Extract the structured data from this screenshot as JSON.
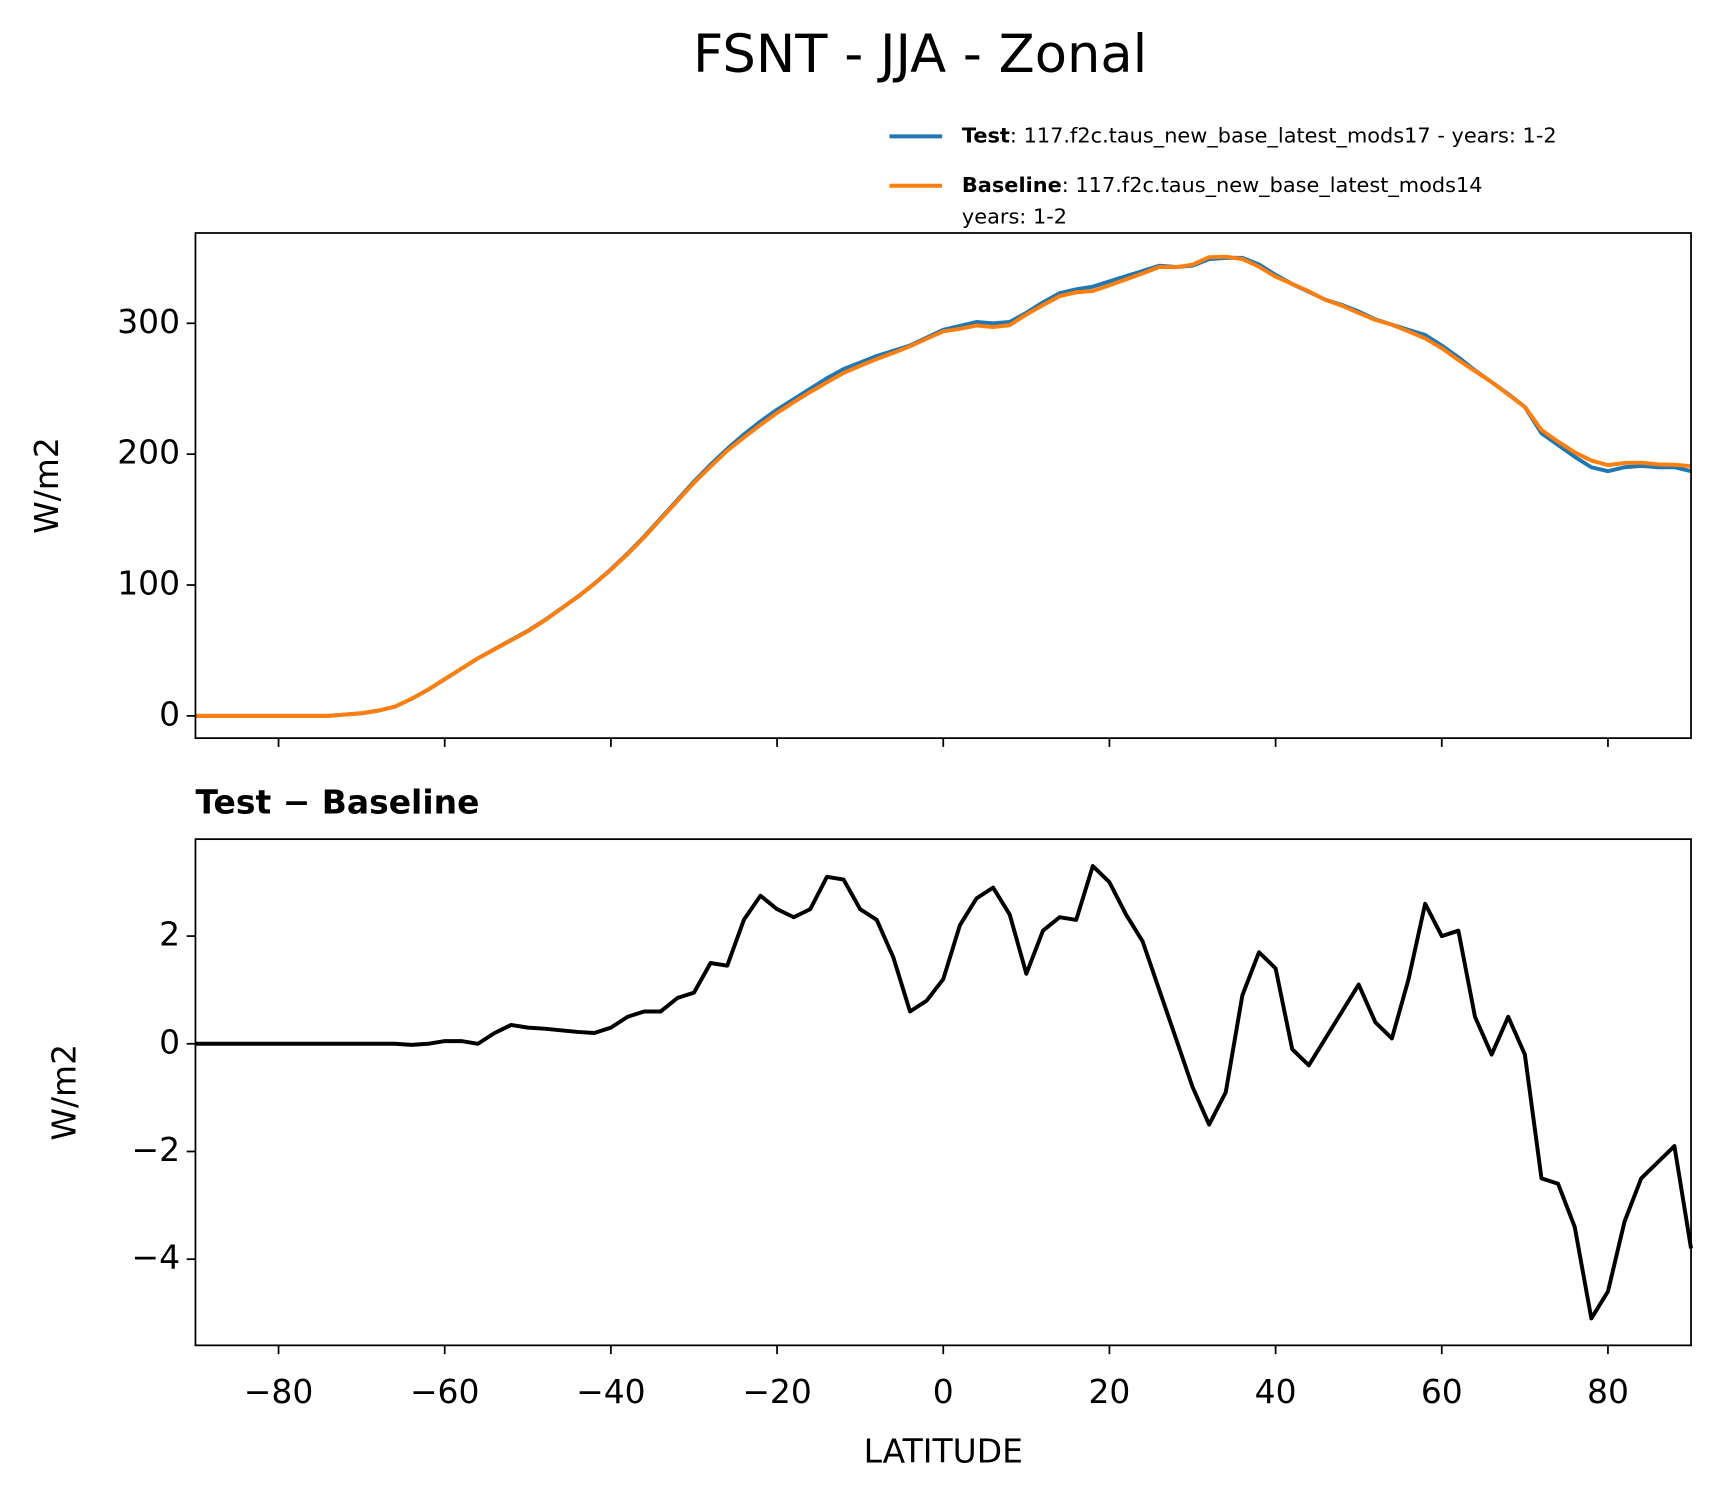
{
  "title": "FSNT - JJA - Zonal",
  "chart_data": [
    {
      "type": "line",
      "ylabel": "W/m2",
      "x": [
        -90,
        -88,
        -86,
        -84,
        -82,
        -80,
        -78,
        -76,
        -74,
        -72,
        -70,
        -68,
        -66,
        -64,
        -62,
        -60,
        -58,
        -56,
        -54,
        -52,
        -50,
        -48,
        -46,
        -44,
        -42,
        -40,
        -38,
        -36,
        -34,
        -32,
        -30,
        -28,
        -26,
        -24,
        -22,
        -20,
        -18,
        -16,
        -14,
        -12,
        -10,
        -8,
        -6,
        -4,
        -2,
        0,
        2,
        4,
        6,
        8,
        10,
        12,
        14,
        16,
        18,
        20,
        22,
        24,
        26,
        28,
        30,
        32,
        34,
        36,
        38,
        40,
        42,
        44,
        46,
        48,
        50,
        52,
        54,
        56,
        58,
        60,
        62,
        64,
        66,
        68,
        70,
        72,
        74,
        76,
        78,
        80,
        82,
        84,
        86,
        88,
        90
      ],
      "series": [
        {
          "name": "Test",
          "description": [
            ": 117.f2c.taus_new_base_latest_mods17 - years: 1-2"
          ],
          "color": "#1f77b4",
          "values": [
            0,
            0,
            0,
            0,
            0,
            0,
            0,
            0,
            0,
            1,
            2,
            4,
            7,
            13,
            20,
            28,
            36,
            44,
            51,
            58,
            65,
            73,
            82,
            91,
            101,
            112,
            124,
            137,
            151,
            165,
            179,
            192,
            204,
            215,
            225,
            234,
            242,
            250,
            258,
            265,
            270,
            275,
            279,
            283,
            289,
            295,
            298,
            301,
            300,
            301,
            308,
            316,
            323,
            326,
            328,
            332,
            336,
            340,
            344,
            343,
            344,
            349,
            350,
            350,
            345,
            337,
            330,
            324,
            318,
            314,
            309,
            303,
            299,
            295,
            291,
            283,
            274,
            264,
            255,
            246,
            236,
            216,
            207,
            198,
            190,
            187,
            190,
            191,
            190,
            190,
            187
          ]
        },
        {
          "name": "Baseline",
          "description": [
            ": 117.f2c.taus_new_base_latest_mods14",
            "years: 1-2"
          ],
          "color": "#ff7f0e",
          "values": [
            0,
            0,
            0,
            0,
            0,
            0,
            0,
            0,
            0,
            1,
            2,
            4,
            7,
            13,
            20,
            28,
            36,
            44,
            50.8,
            57.7,
            64.7,
            72.7,
            81.8,
            90.8,
            100.8,
            111.7,
            123.5,
            136.4,
            150.4,
            164.2,
            178.1,
            190.5,
            202.6,
            212.7,
            222.3,
            231.5,
            239.7,
            247.5,
            254.9,
            262,
            267.5,
            272.7,
            277.4,
            282.4,
            288.2,
            293.8,
            295.8,
            298.3,
            297.1,
            298.6,
            306.7,
            313.9,
            320.7,
            323.7,
            324.7,
            329,
            333.6,
            338.1,
            343,
            342.9,
            344.8,
            350.5,
            350.9,
            349.1,
            343.3,
            335.6,
            330.1,
            324.4,
            317.9,
            313.4,
            307.9,
            302.6,
            298.9,
            293.8,
            288.4,
            281,
            271.9,
            263.5,
            255.2,
            245.5,
            236.2,
            218.5,
            209.6,
            201.4,
            195.1,
            191.6,
            193.3,
            193.5,
            192.2,
            191.9,
            190.8
          ]
        }
      ],
      "xlim": [
        -90,
        90
      ],
      "xticks": [
        -80,
        -60,
        -40,
        -20,
        0,
        20,
        40,
        60,
        80
      ],
      "ylim": [
        -17,
        369
      ],
      "yticks": [
        0,
        100,
        200,
        300
      ]
    },
    {
      "type": "line",
      "title": "Test − Baseline",
      "ylabel": "W/m2",
      "xlabel": "LATITUDE",
      "x": [
        -90,
        -88,
        -86,
        -84,
        -82,
        -80,
        -78,
        -76,
        -74,
        -72,
        -70,
        -68,
        -66,
        -64,
        -62,
        -60,
        -58,
        -56,
        -54,
        -52,
        -50,
        -48,
        -46,
        -44,
        -42,
        -40,
        -38,
        -36,
        -34,
        -32,
        -30,
        -28,
        -26,
        -24,
        -22,
        -20,
        -18,
        -16,
        -14,
        -12,
        -10,
        -8,
        -6,
        -4,
        -2,
        0,
        2,
        4,
        6,
        8,
        10,
        12,
        14,
        16,
        18,
        20,
        22,
        24,
        26,
        28,
        30,
        32,
        34,
        36,
        38,
        40,
        42,
        44,
        46,
        48,
        50,
        52,
        54,
        56,
        58,
        60,
        62,
        64,
        66,
        68,
        70,
        72,
        74,
        76,
        78,
        80,
        82,
        84,
        86,
        88,
        90
      ],
      "series": [
        {
          "color": "#000000",
          "values": [
            0,
            0,
            0,
            0,
            0,
            0,
            0,
            0,
            0,
            0,
            0,
            0,
            0,
            -0.02,
            0,
            0.05,
            0.05,
            0,
            0.2,
            0.35,
            0.3,
            0.28,
            0.25,
            0.22,
            0.2,
            0.3,
            0.5,
            0.6,
            0.6,
            0.85,
            0.95,
            1.5,
            1.45,
            2.3,
            2.75,
            2.5,
            2.35,
            2.5,
            3.1,
            3.05,
            2.5,
            2.3,
            1.6,
            0.6,
            0.8,
            1.2,
            2.2,
            2.7,
            2.9,
            2.4,
            1.3,
            2.1,
            2.35,
            2.3,
            3.3,
            3.0,
            2.4,
            1.9,
            1.0,
            0.1,
            -0.8,
            -1.5,
            -0.9,
            0.9,
            1.7,
            1.4,
            -0.1,
            -0.4,
            0.1,
            0.6,
            1.1,
            0.4,
            0.1,
            1.2,
            2.6,
            2.0,
            2.1,
            0.5,
            -0.2,
            0.5,
            -0.2,
            -2.5,
            -2.6,
            -3.4,
            -5.1,
            -4.6,
            -3.3,
            -2.5,
            -2.2,
            -1.9,
            -3.8
          ]
        }
      ],
      "xlim": [
        -90,
        90
      ],
      "xticks": [
        {
          "value": -80,
          "label": "−80"
        },
        {
          "value": -60,
          "label": "−60"
        },
        {
          "value": -40,
          "label": "−40"
        },
        {
          "value": -20,
          "label": "−20"
        },
        0,
        20,
        40,
        60,
        80
      ],
      "ylim": [
        -5.6,
        3.8
      ],
      "yticks": [
        {
          "value": -4,
          "label": "−4"
        },
        {
          "value": -2,
          "label": "−2"
        },
        0,
        2
      ]
    }
  ]
}
